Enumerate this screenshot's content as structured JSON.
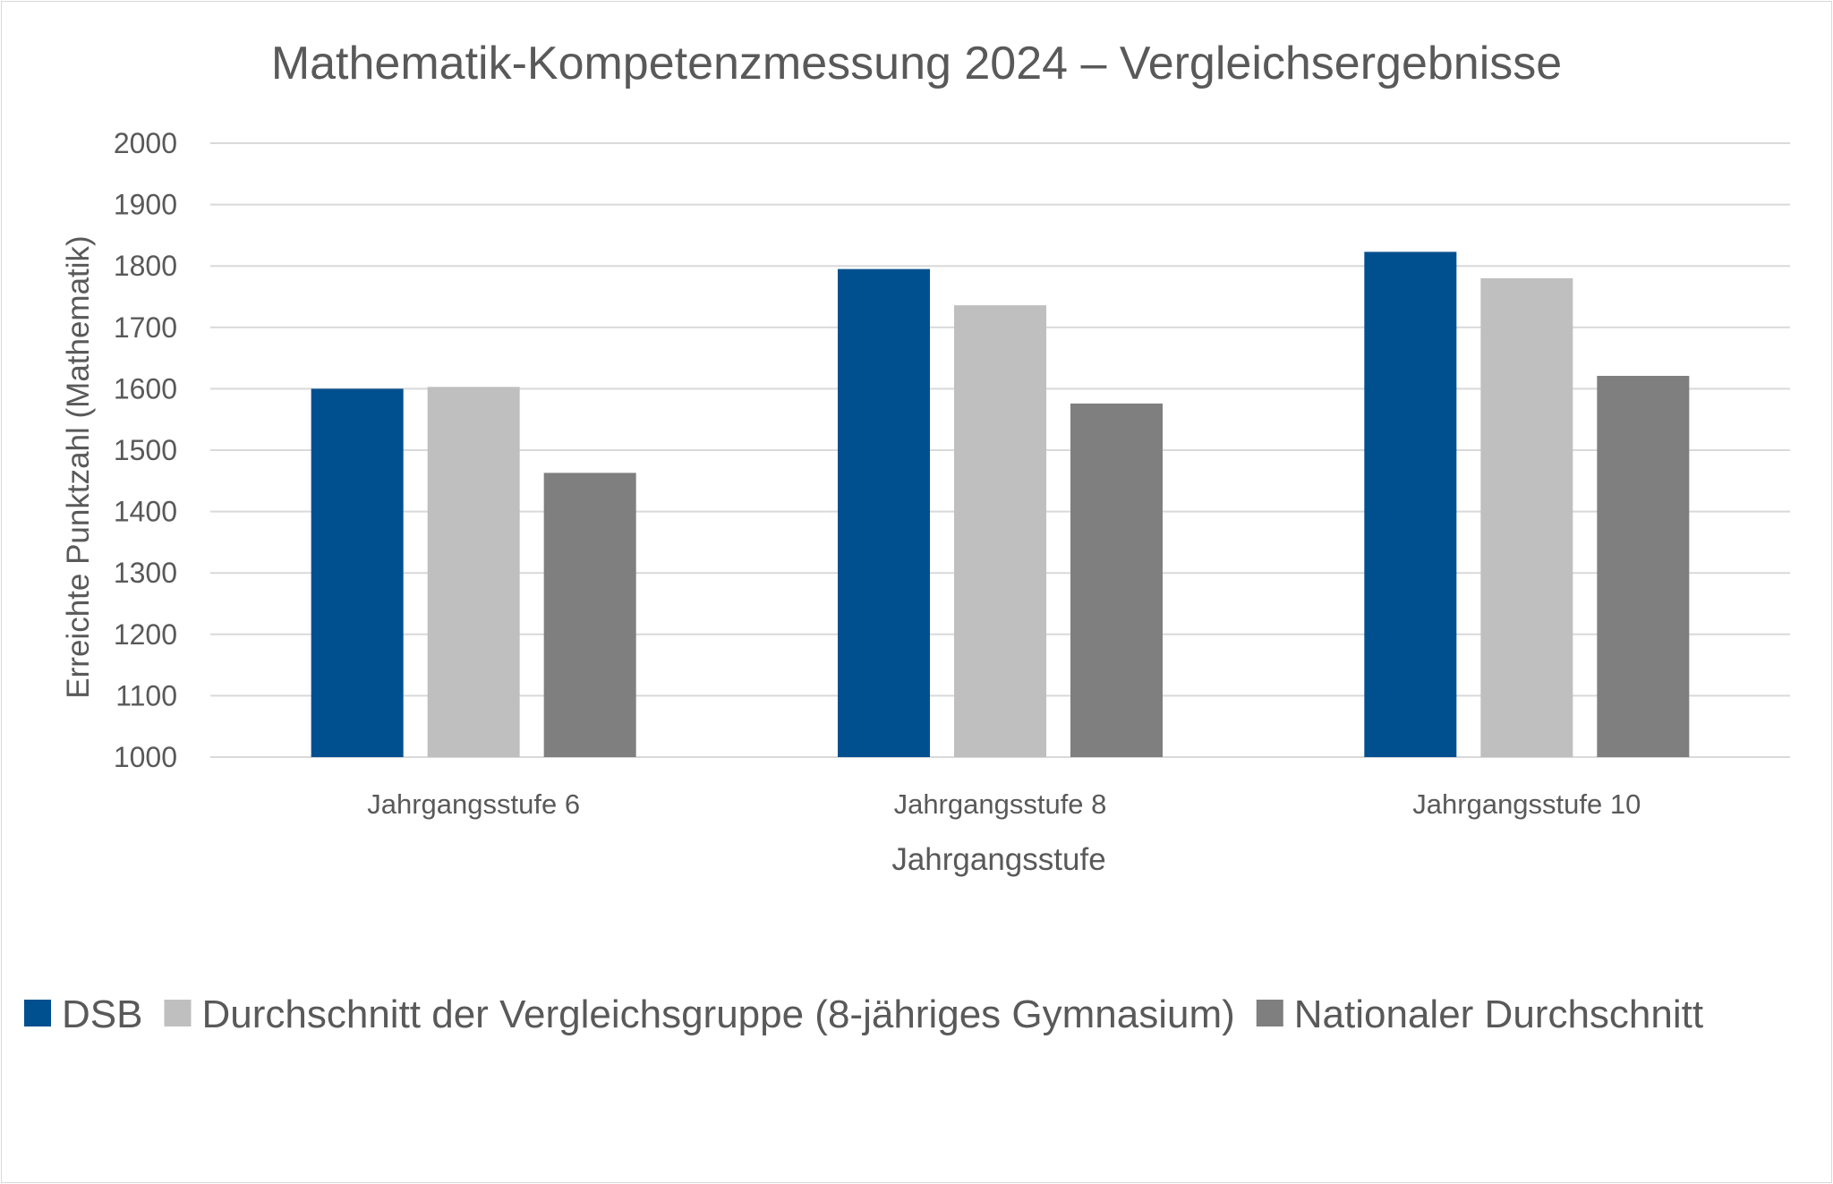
{
  "chart_data": {
    "type": "bar",
    "title": "Mathematik-Kompetenzmessung 2024 – Vergleichsergebnisse",
    "xlabel": "Jahrgangsstufe",
    "ylabel": "Erreichte Punktzahl (Mathematik)",
    "categories": [
      "Jahrgangsstufe 6",
      "Jahrgangsstufe 8",
      "Jahrgangsstufe 10"
    ],
    "ylim": [
      1000,
      2000
    ],
    "yticks": [
      1000,
      1100,
      1200,
      1300,
      1400,
      1500,
      1600,
      1700,
      1800,
      1900,
      2000
    ],
    "grid": true,
    "legend_position": "bottom",
    "series": [
      {
        "name": "DSB",
        "color": "#00508f",
        "values": [
          1600,
          1795,
          1823
        ]
      },
      {
        "name": "Durchschnitt der Vergleichsgruppe (8-jähriges Gymnasium)",
        "color": "#bfbfbf",
        "values": [
          1603,
          1736,
          1780
        ]
      },
      {
        "name": "Nationaler Durchschnitt",
        "color": "#7f7f7f",
        "values": [
          1463,
          1576,
          1621
        ]
      }
    ]
  }
}
